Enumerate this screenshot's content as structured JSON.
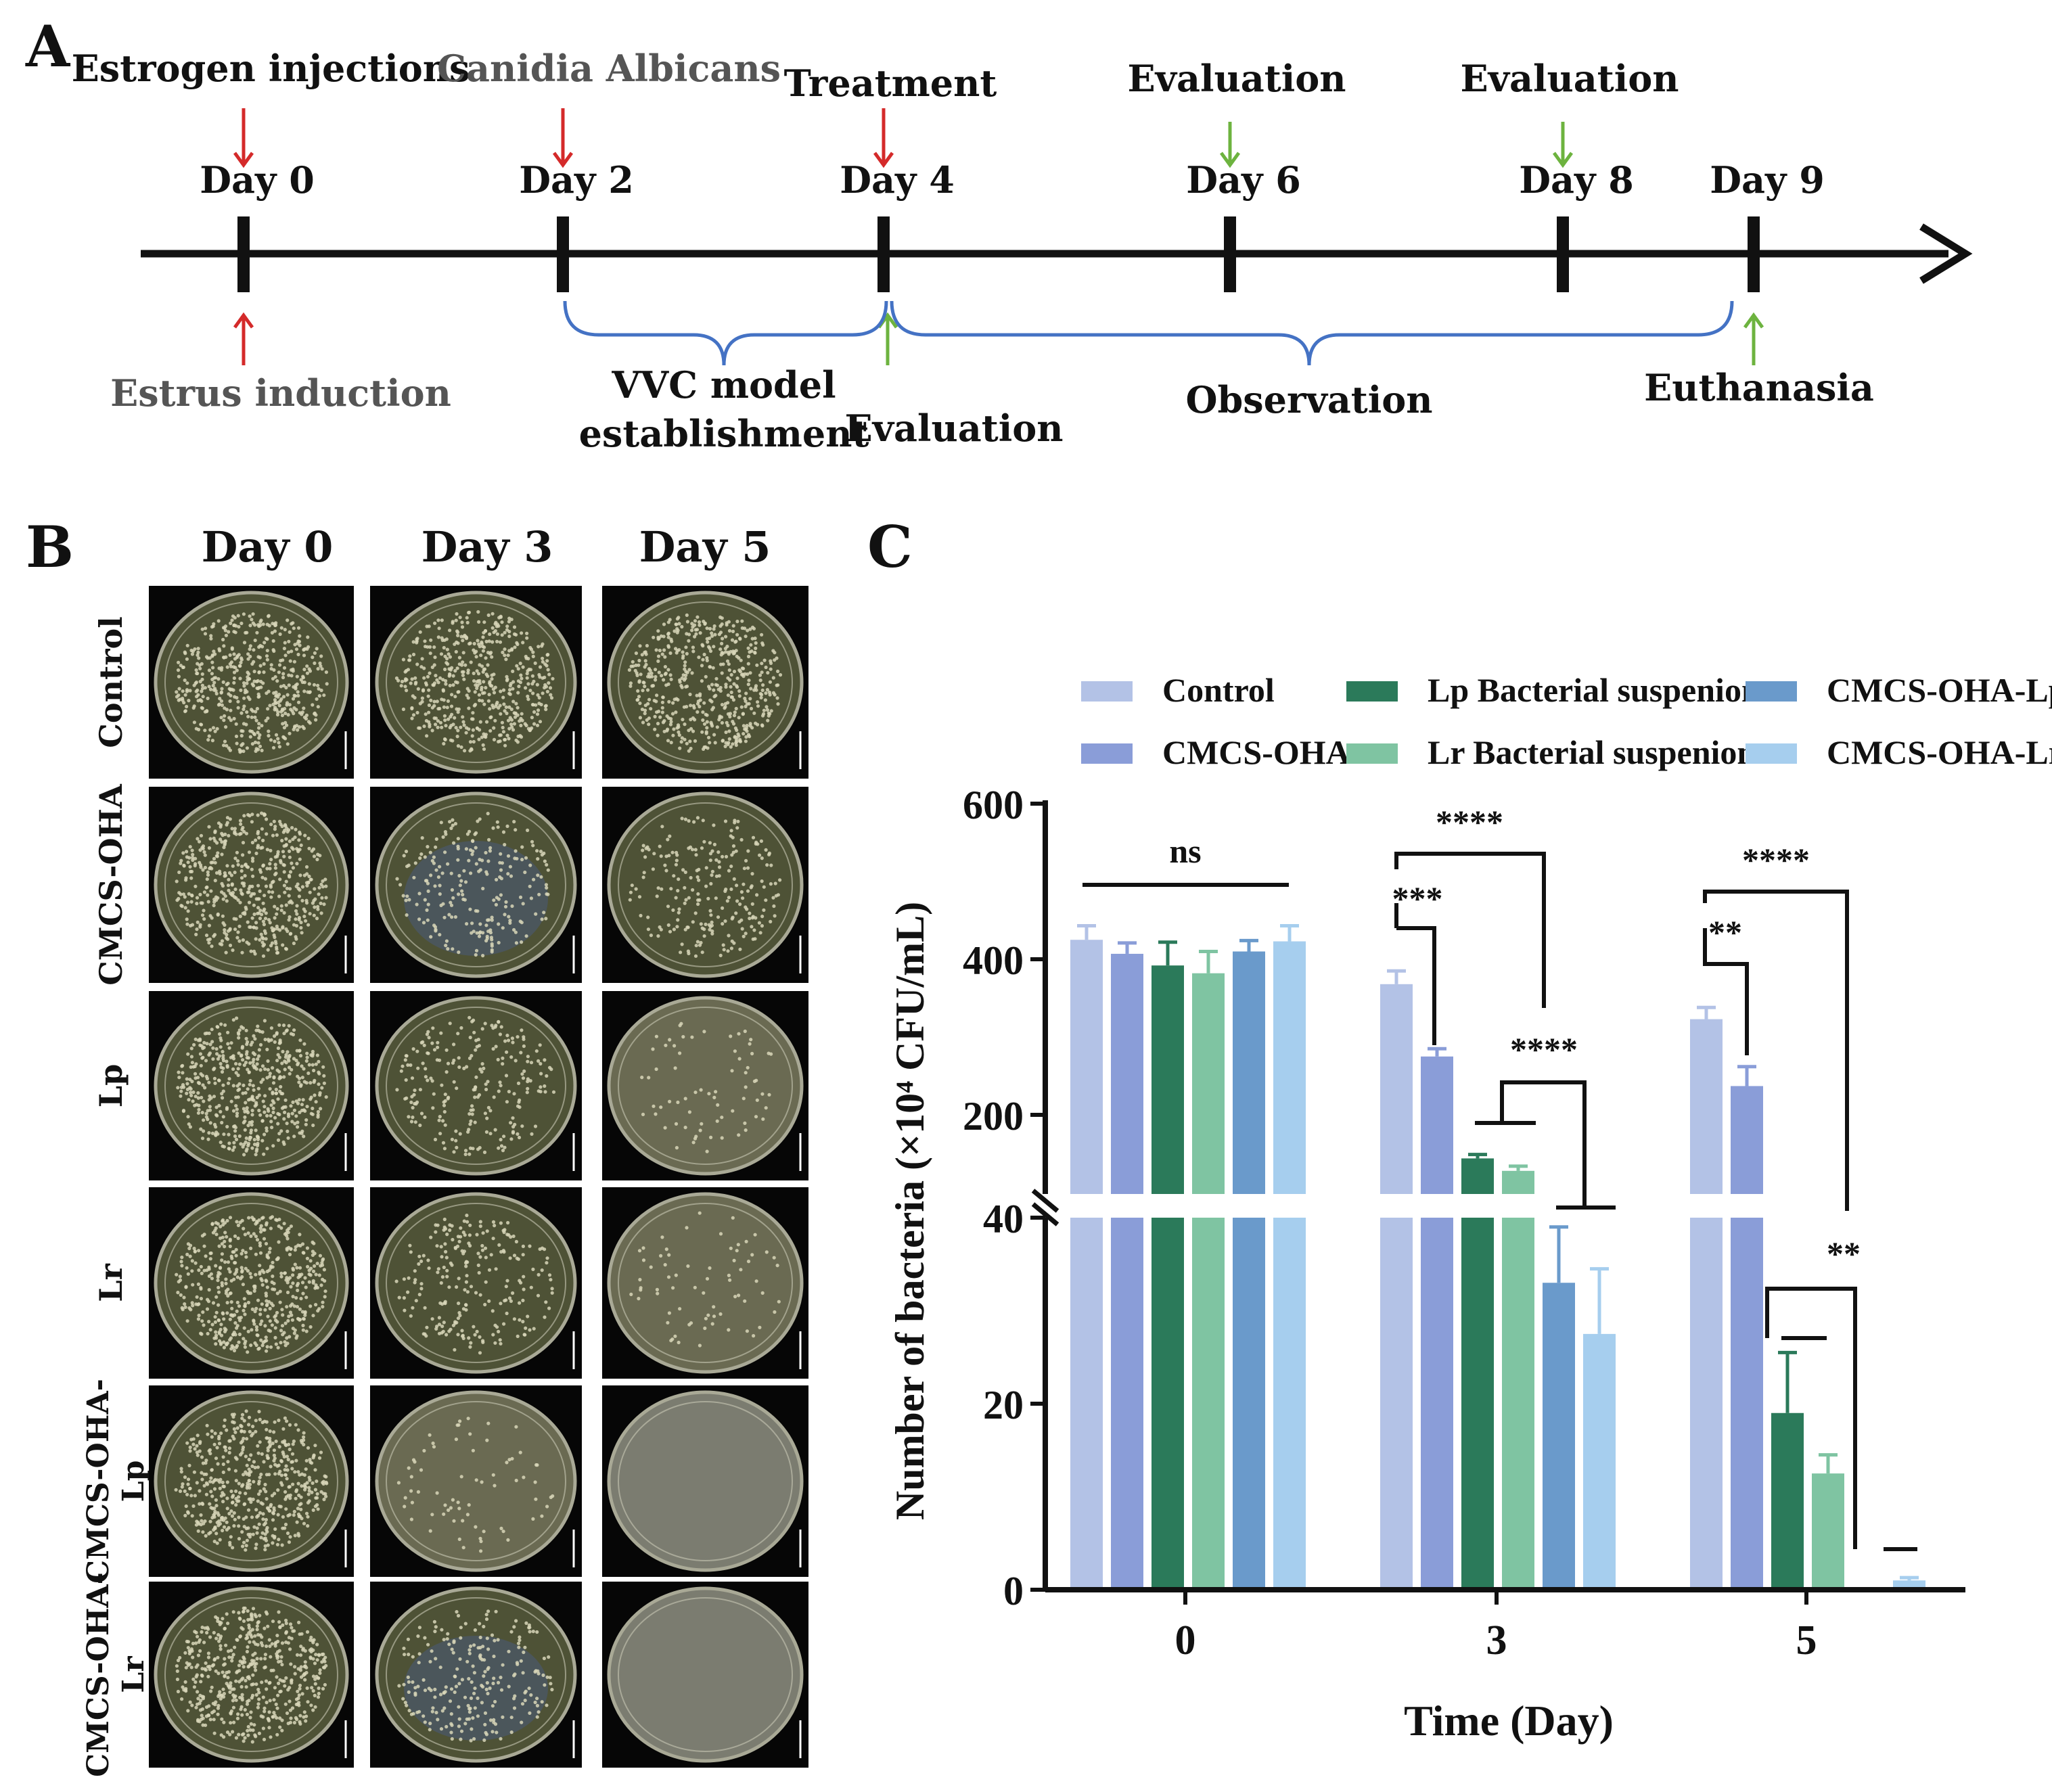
{
  "panel_labels": {
    "a": "A",
    "b": "B",
    "c": "C"
  },
  "timeline": {
    "days": [
      {
        "id": "d0",
        "label": "Day 0",
        "above": "Estrogen injections",
        "above_arrow": "red",
        "below": "Estrus induction",
        "below_arrow": "red"
      },
      {
        "id": "d2",
        "label": "Day 2",
        "above": "Canidia Albicans",
        "above_arrow": "red"
      },
      {
        "id": "d4",
        "label": "Day 4",
        "above": "Treatment",
        "above_arrow": "red",
        "below": "Evaluation",
        "below_arrow": "green"
      },
      {
        "id": "d6",
        "label": "Day 6",
        "above": "Evaluation",
        "above_arrow": "green"
      },
      {
        "id": "d8",
        "label": "Day 8",
        "above": "Evaluation",
        "above_arrow": "green"
      },
      {
        "id": "d9",
        "label": "Day 9",
        "below": "Euthanasia",
        "below_arrow": "green"
      }
    ],
    "bracket_model": [
      "VVC model",
      "establishment"
    ],
    "bracket_observation": "Observation",
    "colors": {
      "red": "#d42a2a",
      "green": "#6db33f",
      "bracket": "#4472c4"
    }
  },
  "plates": {
    "columns": [
      "Day 0",
      "Day 3",
      "Day 5"
    ],
    "rows": [
      {
        "label": [
          "Control"
        ],
        "colonies": [
          "dense",
          "dense",
          "dense"
        ]
      },
      {
        "label": [
          "CMCS-OHA"
        ],
        "colonies": [
          "dense",
          "medium",
          "medium"
        ]
      },
      {
        "label": [
          "Lp"
        ],
        "colonies": [
          "dense",
          "medium",
          "sparse"
        ]
      },
      {
        "label": [
          "Lr"
        ],
        "colonies": [
          "dense",
          "medium",
          "sparse"
        ]
      },
      {
        "label": [
          "CMCS-OHA-",
          "Lp"
        ],
        "colonies": [
          "dense",
          "sparse",
          "none"
        ]
      },
      {
        "label": [
          "CMCS-OHA-",
          "Lr"
        ],
        "colonies": [
          "dense",
          "medium",
          "none"
        ]
      }
    ]
  },
  "chart_data": {
    "type": "bar",
    "xlabel": "Time (Day)",
    "ylabel": "Number of bacteria (×10⁴ CFU/mL)",
    "categories": [
      "0",
      "3",
      "5"
    ],
    "y_axis_break": {
      "lower_range": [
        0,
        40
      ],
      "upper_range": [
        200,
        600
      ]
    },
    "yticks_lower": [
      "0",
      "20",
      "40"
    ],
    "yticks_upper": [
      "200",
      "400",
      "600"
    ],
    "legend_position": "top",
    "series": [
      {
        "name": "Control",
        "color": "#b3c2e6",
        "values": [
          425,
          368,
          323
        ],
        "errors": [
          18,
          17,
          15
        ]
      },
      {
        "name": "CMCS-OHA",
        "color": "#8a9dd8",
        "values": [
          407,
          275,
          237
        ],
        "errors": [
          14,
          10,
          25
        ]
      },
      {
        "name": "Lp Bacterial suspenion",
        "color": "#2b7a5a",
        "values": [
          392,
          144,
          19
        ],
        "errors": [
          30,
          5,
          6.5
        ]
      },
      {
        "name": "Lr Bacterial suspenion",
        "color": "#7fc4a2",
        "values": [
          382,
          128,
          12.5
        ],
        "errors": [
          28,
          6,
          2
        ]
      },
      {
        "name": "CMCS-OHA-Lp",
        "color": "#6a9acb",
        "values": [
          410,
          33,
          0
        ],
        "errors": [
          14,
          6,
          0
        ]
      },
      {
        "name": "CMCS-OHA-Lr",
        "color": "#a6ceee",
        "values": [
          423,
          27.5,
          1
        ],
        "errors": [
          20,
          7,
          0.3
        ]
      }
    ],
    "annotations": [
      "ns",
      "***",
      "****",
      "****",
      "**",
      "****",
      "**"
    ]
  }
}
